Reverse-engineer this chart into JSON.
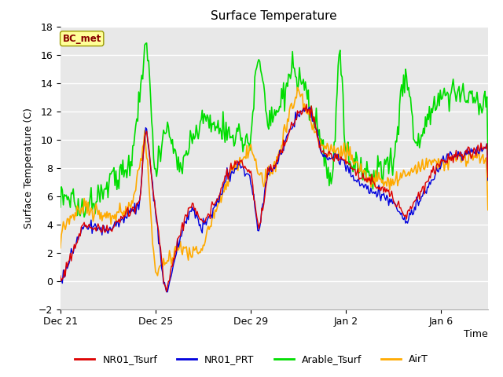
{
  "title": "Surface Temperature",
  "ylabel": "Surface Temperature (C)",
  "xlabel": "Time",
  "ylim": [
    -2,
    18
  ],
  "yticks": [
    -2,
    0,
    2,
    4,
    6,
    8,
    10,
    12,
    14,
    16,
    18
  ],
  "fig_bg_color": "#ffffff",
  "plot_bg_color": "#e8e8e8",
  "line_colors": {
    "NR01_Tsurf": "#dd0000",
    "NR01_PRT": "#0000dd",
    "Arable_Tsurf": "#00dd00",
    "AirT": "#ffaa00"
  },
  "line_widths": {
    "NR01_Tsurf": 1.0,
    "NR01_PRT": 1.0,
    "Arable_Tsurf": 1.2,
    "AirT": 1.2
  },
  "annotation_text": "BC_met",
  "annotation_bg": "#ffff99",
  "annotation_color": "#880000",
  "xtick_labels": [
    "Dec 21",
    "Dec 25",
    "Dec 29",
    "Jan 2",
    "Jan 6"
  ],
  "xtick_positions": [
    0,
    96,
    192,
    288,
    384
  ],
  "total_points": 432,
  "legend_labels": [
    "NR01_Tsurf",
    "NR01_PRT",
    "Arable_Tsurf",
    "AirT"
  ],
  "grid_color": "#ffffff",
  "tick_fontsize": 9,
  "label_fontsize": 9,
  "title_fontsize": 11
}
